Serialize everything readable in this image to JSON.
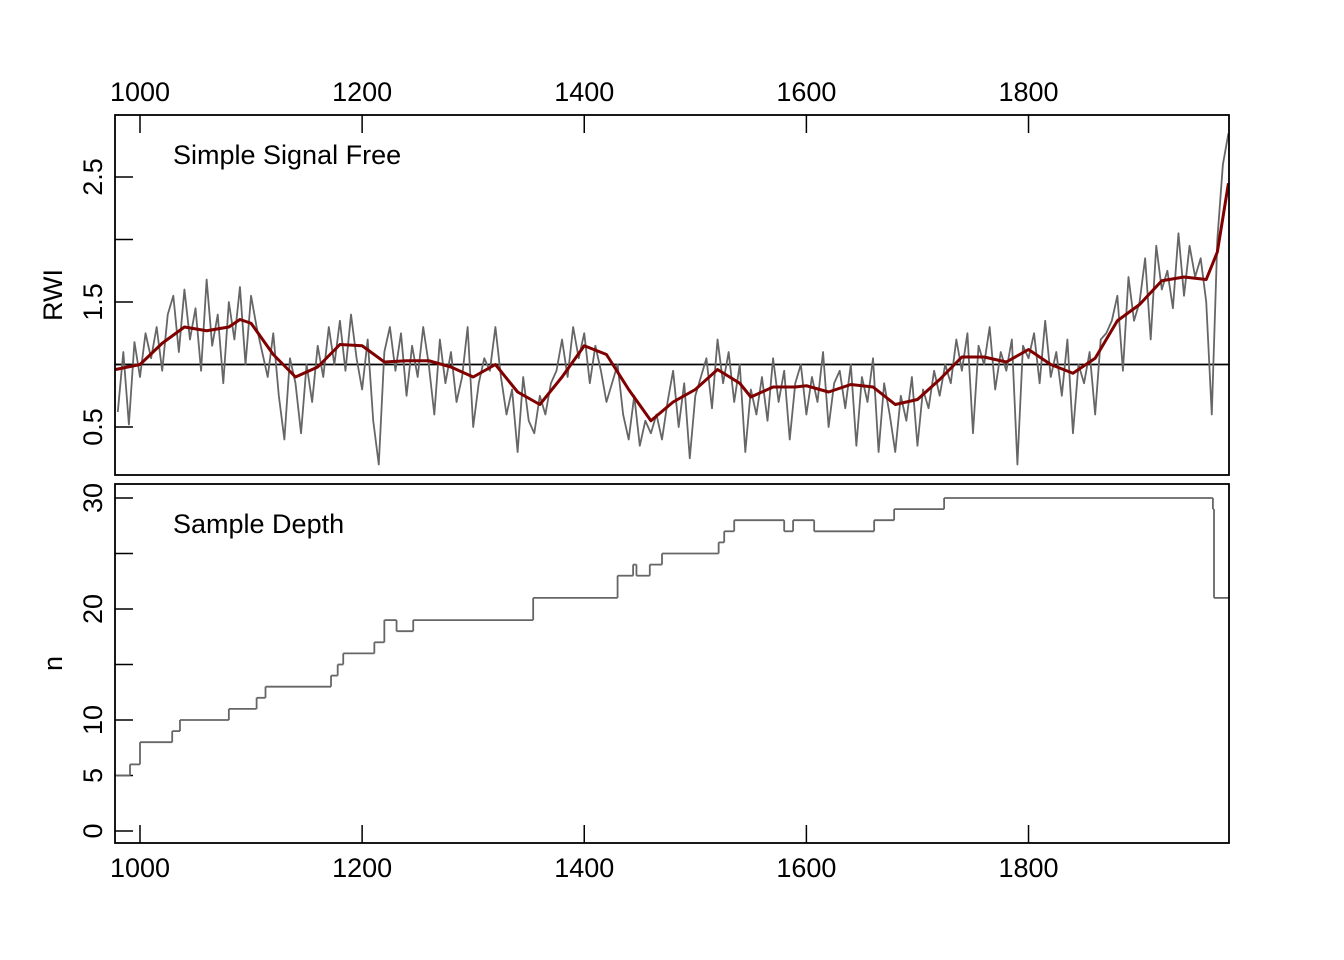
{
  "chart_data": [
    {
      "type": "line",
      "annotation": "Simple Signal Free",
      "ylabel": "RWI",
      "xaxis": "top",
      "xlim": [
        977.5,
        1980.5
      ],
      "ylim": [
        0.116,
        2.996
      ],
      "xticks": [
        1000,
        1200,
        1400,
        1600,
        1800
      ],
      "yticks": [
        0.5,
        {
          "value": 1,
          "label": null
        },
        1.5,
        {
          "value": 2,
          "label": null
        },
        2.5
      ],
      "hline": 1,
      "series": [
        {
          "color": "#666666",
          "x": [
            980,
            985,
            990,
            995,
            1000,
            1005,
            1010,
            1015,
            1020,
            1025,
            1030,
            1035,
            1040,
            1045,
            1050,
            1055,
            1060,
            1065,
            1070,
            1075,
            1080,
            1085,
            1090,
            1095,
            1100,
            1105,
            1110,
            1115,
            1120,
            1125,
            1130,
            1135,
            1140,
            1145,
            1150,
            1155,
            1160,
            1165,
            1170,
            1175,
            1180,
            1185,
            1190,
            1195,
            1200,
            1205,
            1210,
            1215,
            1220,
            1225,
            1230,
            1235,
            1240,
            1245,
            1250,
            1255,
            1260,
            1265,
            1270,
            1275,
            1280,
            1285,
            1290,
            1295,
            1300,
            1305,
            1310,
            1315,
            1320,
            1325,
            1330,
            1335,
            1340,
            1345,
            1350,
            1355,
            1360,
            1365,
            1370,
            1375,
            1380,
            1385,
            1390,
            1395,
            1400,
            1405,
            1410,
            1415,
            1420,
            1425,
            1430,
            1435,
            1440,
            1445,
            1450,
            1455,
            1460,
            1465,
            1470,
            1475,
            1480,
            1485,
            1490,
            1495,
            1500,
            1505,
            1510,
            1515,
            1520,
            1525,
            1530,
            1535,
            1540,
            1545,
            1550,
            1555,
            1560,
            1565,
            1570,
            1575,
            1580,
            1585,
            1590,
            1595,
            1600,
            1605,
            1610,
            1615,
            1620,
            1625,
            1630,
            1635,
            1640,
            1645,
            1650,
            1655,
            1660,
            1665,
            1670,
            1675,
            1680,
            1685,
            1690,
            1695,
            1700,
            1705,
            1710,
            1715,
            1720,
            1725,
            1730,
            1735,
            1740,
            1745,
            1750,
            1755,
            1760,
            1765,
            1770,
            1775,
            1780,
            1785,
            1790,
            1795,
            1800,
            1805,
            1810,
            1815,
            1820,
            1825,
            1830,
            1835,
            1840,
            1845,
            1850,
            1855,
            1860,
            1865,
            1870,
            1875,
            1880,
            1885,
            1890,
            1895,
            1900,
            1905,
            1910,
            1915,
            1920,
            1925,
            1930,
            1935,
            1940,
            1945,
            1950,
            1955,
            1960,
            1965,
            1970,
            1975,
            1980
          ],
          "values": [
            0.62,
            1.1,
            0.52,
            1.18,
            0.9,
            1.25,
            1.05,
            1.3,
            0.95,
            1.4,
            1.55,
            1.1,
            1.6,
            1.2,
            1.45,
            0.95,
            1.68,
            1.15,
            1.4,
            0.85,
            1.5,
            1.2,
            1.62,
            1.0,
            1.55,
            1.3,
            1.1,
            0.9,
            1.25,
            0.75,
            0.4,
            1.05,
            0.85,
            0.45,
            1.0,
            0.7,
            1.15,
            0.9,
            1.3,
            1.0,
            1.35,
            0.95,
            1.4,
            1.05,
            0.8,
            1.2,
            0.55,
            0.2,
            1.1,
            1.3,
            0.95,
            1.25,
            0.75,
            1.15,
            0.9,
            1.3,
            1.0,
            0.6,
            1.2,
            0.85,
            1.1,
            0.7,
            0.9,
            1.3,
            0.5,
            0.85,
            1.05,
            0.95,
            1.3,
            0.9,
            0.6,
            0.8,
            0.3,
            0.9,
            0.55,
            0.45,
            0.75,
            0.6,
            0.85,
            0.95,
            1.2,
            0.9,
            1.3,
            1.05,
            1.25,
            0.85,
            1.15,
            0.95,
            0.7,
            0.85,
            1.0,
            0.6,
            0.4,
            0.75,
            0.35,
            0.55,
            0.45,
            0.6,
            0.4,
            0.7,
            0.95,
            0.5,
            0.85,
            0.25,
            0.75,
            0.9,
            1.05,
            0.65,
            1.2,
            0.85,
            1.1,
            0.7,
            1.0,
            0.3,
            0.8,
            0.6,
            0.9,
            0.55,
            1.05,
            0.7,
            0.95,
            0.4,
            0.85,
            1.0,
            0.6,
            0.9,
            0.7,
            1.1,
            0.5,
            0.85,
            0.95,
            0.65,
            1.0,
            0.35,
            0.9,
            0.7,
            1.05,
            0.3,
            0.85,
            0.6,
            0.3,
            0.75,
            0.55,
            0.9,
            0.35,
            0.8,
            0.65,
            0.95,
            0.75,
            1.0,
            0.85,
            1.2,
            0.95,
            1.25,
            0.45,
            1.15,
            1.0,
            1.3,
            0.8,
            1.1,
            0.95,
            1.2,
            0.2,
            1.15,
            1.05,
            1.25,
            0.85,
            1.35,
            0.9,
            1.1,
            0.75,
            1.2,
            0.45,
            1.0,
            0.85,
            1.1,
            0.6,
            1.2,
            1.25,
            1.35,
            1.55,
            0.95,
            1.7,
            1.35,
            1.5,
            1.85,
            1.2,
            1.95,
            1.6,
            1.75,
            1.45,
            2.05,
            1.55,
            1.95,
            1.7,
            1.85,
            1.5,
            0.6,
            2.0,
            2.6,
            2.85
          ]
        },
        {
          "color": "#800000",
          "x": [
            978,
            1000,
            1020,
            1040,
            1060,
            1080,
            1090,
            1100,
            1120,
            1140,
            1160,
            1180,
            1200,
            1220,
            1240,
            1260,
            1280,
            1300,
            1320,
            1340,
            1360,
            1380,
            1400,
            1420,
            1440,
            1460,
            1480,
            1500,
            1520,
            1540,
            1550,
            1570,
            1590,
            1600,
            1620,
            1640,
            1660,
            1680,
            1700,
            1720,
            1740,
            1760,
            1780,
            1800,
            1820,
            1840,
            1860,
            1880,
            1900,
            1920,
            1940,
            1960,
            1970,
            1980
          ],
          "values": [
            0.96,
            1.0,
            1.17,
            1.3,
            1.27,
            1.3,
            1.36,
            1.33,
            1.08,
            0.9,
            0.98,
            1.16,
            1.15,
            1.02,
            1.03,
            1.03,
            0.98,
            0.9,
            1.0,
            0.78,
            0.68,
            0.9,
            1.15,
            1.08,
            0.8,
            0.55,
            0.7,
            0.8,
            0.96,
            0.85,
            0.74,
            0.82,
            0.82,
            0.83,
            0.78,
            0.84,
            0.82,
            0.68,
            0.72,
            0.88,
            1.06,
            1.06,
            1.02,
            1.12,
            1.0,
            0.93,
            1.05,
            1.35,
            1.48,
            1.67,
            1.7,
            1.68,
            1.9,
            2.45
          ]
        }
      ]
    },
    {
      "type": "step",
      "annotation": "Sample Depth",
      "ylabel": "n",
      "xaxis": "bottom",
      "xlim": [
        977.5,
        1980.5
      ],
      "ylim": [
        -1.08,
        31.26
      ],
      "xticks": [
        1000,
        1200,
        1400,
        1600,
        1800
      ],
      "yticks": [
        0,
        5,
        10,
        {
          "value": 15,
          "label": null
        },
        20,
        {
          "value": 25,
          "label": null
        },
        30
      ],
      "series": [
        {
          "color": "#666666",
          "x": [
            978,
            991,
            1000,
            1029,
            1036,
            1080,
            1105,
            1113,
            1172,
            1178,
            1183,
            1211,
            1220,
            1231,
            1246,
            1354,
            1430,
            1444,
            1447,
            1459,
            1470,
            1521,
            1526,
            1535,
            1580,
            1588,
            1607,
            1661,
            1679,
            1724,
            1966,
            1967
          ],
          "values": [
            5,
            6,
            8,
            9,
            10,
            11,
            12,
            13,
            14,
            15,
            16,
            17,
            19,
            18,
            19,
            21,
            23,
            24,
            23,
            24,
            25,
            26,
            27,
            28,
            27,
            28,
            27,
            28,
            29,
            30,
            29,
            21
          ]
        }
      ]
    }
  ]
}
